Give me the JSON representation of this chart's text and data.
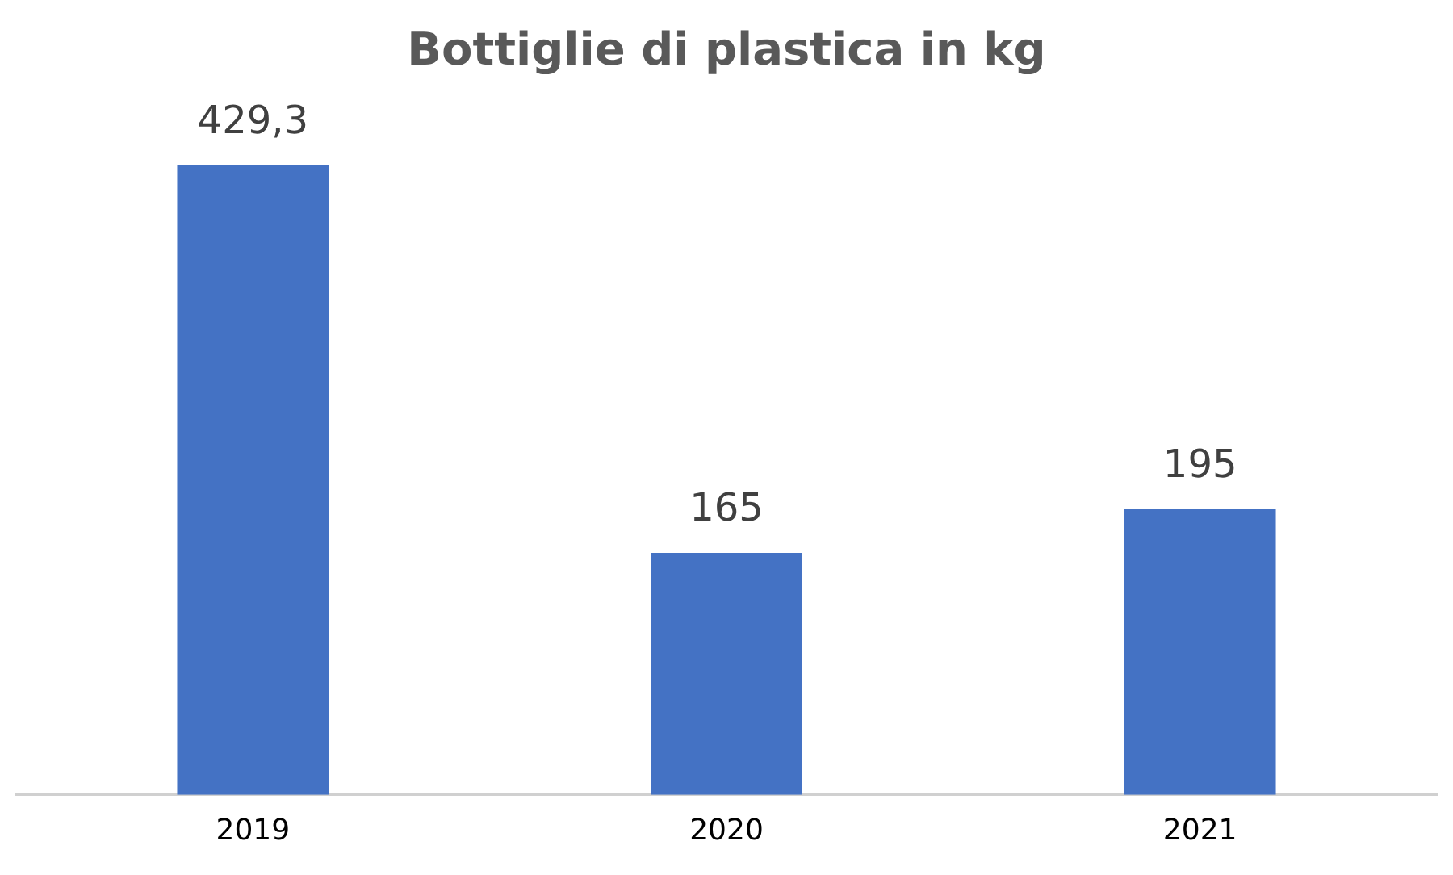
{
  "chart_data": {
    "type": "bar",
    "title": "Bottiglie di plastica in kg",
    "categories": [
      "2019",
      "2020",
      "2021"
    ],
    "values": [
      429.3,
      165,
      195
    ],
    "value_labels": [
      "429,3",
      "165",
      "195"
    ],
    "color": "#4472c4",
    "tick_labels": "x",
    "grid": false,
    "legend": false
  }
}
